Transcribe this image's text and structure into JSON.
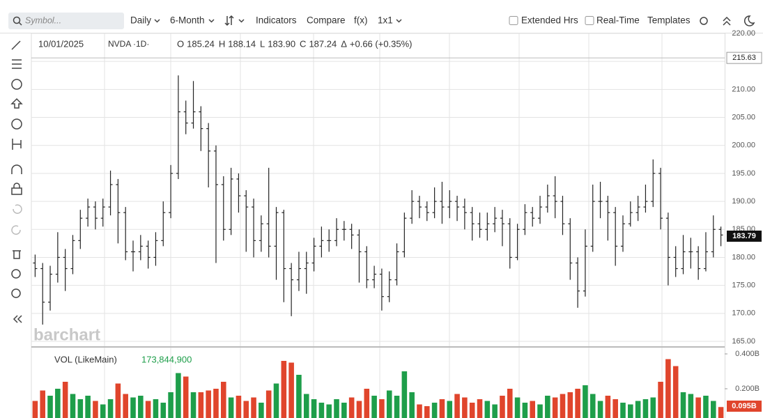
{
  "toolbar": {
    "symbol_placeholder": "Symbol...",
    "items": [
      "Daily",
      "6-Month",
      "Indicators",
      "Compare",
      "f(x)",
      "1x1"
    ],
    "toggles": [
      "Extended Hrs",
      "Real-Time"
    ],
    "templates": "Templates"
  },
  "watermark": "barchart",
  "chart_data": [
    {
      "type": "ohlc",
      "date": "10/01/2025",
      "symbol_label": "NVDA ·1D·",
      "info": [
        {
          "key": "O",
          "text": "185.24"
        },
        {
          "key": "H",
          "text": "188.14"
        },
        {
          "key": "L",
          "text": "183.90"
        },
        {
          "key": "C",
          "text": "187.24"
        },
        {
          "key": "Δ",
          "text": "+0.66 (+0.35%)"
        }
      ],
      "crosshair_price": 215.63,
      "last_price": 183.79,
      "color": "#222222",
      "ylim": [
        165,
        220
      ],
      "yticks": [
        {
          "value": 165,
          "label": "165.00"
        },
        {
          "value": 170,
          "label": "170.00"
        },
        {
          "value": 175,
          "label": "175.00"
        },
        {
          "value": 180,
          "label": "180.00"
        },
        {
          "value": 185,
          "label": "185.00"
        },
        {
          "value": 190,
          "label": "190.00"
        },
        {
          "value": 195,
          "label": "195.00"
        },
        {
          "value": 200,
          "label": "200.00"
        },
        {
          "value": 205,
          "label": "205.00"
        },
        {
          "value": 210,
          "label": "210.00"
        },
        {
          "value": 215,
          "label": "215.00"
        },
        {
          "value": 220,
          "label": "220.00"
        }
      ],
      "grid": true,
      "open": [
        179,
        178,
        172,
        177,
        180,
        178,
        183,
        187,
        189,
        187,
        189,
        193,
        188,
        181,
        181,
        182,
        180,
        183,
        188,
        195,
        206,
        204,
        206,
        203,
        199,
        193,
        185,
        194,
        191,
        189,
        183,
        186,
        182,
        188,
        178,
        176,
        178,
        179,
        182,
        183,
        183,
        185,
        185,
        184,
        181,
        176,
        177,
        173,
        176,
        181,
        187,
        190,
        189,
        188,
        190,
        189,
        190,
        189,
        188,
        186,
        185,
        186,
        187,
        186,
        180,
        185,
        188,
        187,
        189,
        191,
        190,
        186,
        179,
        174,
        182,
        190,
        190,
        188,
        182,
        186,
        188,
        189,
        190,
        195,
        187,
        180,
        178,
        181,
        181,
        178,
        181,
        185
      ],
      "high": [
        180.5,
        179,
        178.5,
        184.5,
        181.5,
        184,
        188.5,
        190.5,
        190,
        190.5,
        195.5,
        194,
        189,
        183,
        184,
        183,
        184.5,
        190,
        196.5,
        212.5,
        208,
        211.5,
        207,
        204,
        200,
        194.5,
        196,
        195,
        192,
        190.5,
        187.5,
        196,
        189,
        188.5,
        179,
        181,
        181,
        183.5,
        185.5,
        185,
        187,
        186.5,
        186,
        185,
        182,
        178.5,
        178,
        177.5,
        182.5,
        188,
        192,
        191,
        190,
        192.5,
        193.5,
        192,
        191,
        190.5,
        189,
        188,
        188,
        189,
        188.5,
        187,
        186,
        189.5,
        189,
        191,
        193,
        194.5,
        191,
        187,
        180,
        185,
        193,
        193.5,
        191,
        189,
        187.5,
        190,
        191,
        193,
        197.5,
        196,
        188,
        182,
        184,
        183.5,
        182,
        184.5,
        187.5,
        185.5
      ],
      "low": [
        176.5,
        168,
        170.5,
        175.5,
        174,
        177,
        181.5,
        185.5,
        185,
        185.5,
        187.5,
        182.5,
        179.5,
        177.5,
        179.5,
        178,
        178.5,
        182,
        187,
        194,
        202,
        203,
        199,
        192.5,
        179,
        183,
        184,
        188,
        181,
        180,
        181,
        180,
        176,
        172,
        169.5,
        174,
        173.5,
        177.5,
        180,
        181,
        182,
        183,
        181.5,
        175.5,
        174.5,
        174.5,
        170.5,
        172,
        175,
        180,
        186,
        187,
        186.5,
        187,
        186,
        187,
        186.5,
        185,
        183,
        183.5,
        183,
        184.5,
        182,
        178,
        179.5,
        184,
        185.5,
        186,
        188,
        187,
        184,
        176,
        171,
        173,
        181,
        187,
        183,
        178.5,
        181,
        185.5,
        186.5,
        188,
        189,
        185,
        175,
        176.5,
        177,
        178,
        176,
        177.5,
        180,
        182
      ],
      "close": [
        178,
        172,
        177,
        180,
        178,
        183,
        187,
        189,
        187,
        189,
        193,
        188,
        181,
        181,
        182,
        180,
        183,
        188,
        195,
        206,
        204,
        206,
        203,
        199,
        193,
        185,
        194,
        191,
        189,
        183,
        186,
        182,
        188,
        178,
        176,
        178,
        179,
        182,
        183,
        183,
        185,
        185,
        184,
        181,
        176,
        177,
        173,
        176,
        181,
        187,
        190,
        189,
        188,
        190,
        189,
        190,
        189,
        188,
        186,
        185,
        186,
        187,
        186,
        180,
        185,
        188,
        187,
        189,
        191,
        190,
        186,
        179,
        174,
        182,
        190,
        190,
        188,
        182,
        186,
        188,
        189,
        190,
        195,
        187,
        180,
        178,
        181,
        181,
        178,
        181,
        185,
        184
      ]
    },
    {
      "type": "bar",
      "legend": "VOL (LikeMain)",
      "last_volume": {
        "value": 173844900,
        "label": "173,844,900"
      },
      "last_value": {
        "value": 0.095,
        "label": "0.095B"
      },
      "up_color": "#1e9e4a",
      "down_color": "#e0452c",
      "ylim": [
        0.032,
        0.4
      ],
      "yticks": [
        {
          "value": 0.4,
          "label": "0.400B"
        },
        {
          "value": 0.2,
          "label": "0.200B"
        }
      ],
      "values": [
        0.13,
        0.19,
        0.16,
        0.2,
        0.24,
        0.17,
        0.14,
        0.16,
        0.13,
        0.11,
        0.14,
        0.23,
        0.17,
        0.15,
        0.16,
        0.13,
        0.14,
        0.12,
        0.18,
        0.29,
        0.27,
        0.18,
        0.18,
        0.19,
        0.2,
        0.24,
        0.15,
        0.16,
        0.13,
        0.15,
        0.12,
        0.19,
        0.23,
        0.36,
        0.35,
        0.28,
        0.17,
        0.14,
        0.12,
        0.11,
        0.14,
        0.12,
        0.15,
        0.13,
        0.2,
        0.16,
        0.14,
        0.19,
        0.16,
        0.3,
        0.18,
        0.11,
        0.1,
        0.12,
        0.14,
        0.13,
        0.17,
        0.15,
        0.12,
        0.14,
        0.13,
        0.11,
        0.16,
        0.2,
        0.15,
        0.12,
        0.13,
        0.11,
        0.16,
        0.15,
        0.17,
        0.18,
        0.2,
        0.22,
        0.17,
        0.13,
        0.16,
        0.14,
        0.12,
        0.11,
        0.13,
        0.14,
        0.15,
        0.24,
        0.37,
        0.33,
        0.18,
        0.17,
        0.15,
        0.16,
        0.13,
        0.095
      ]
    }
  ]
}
